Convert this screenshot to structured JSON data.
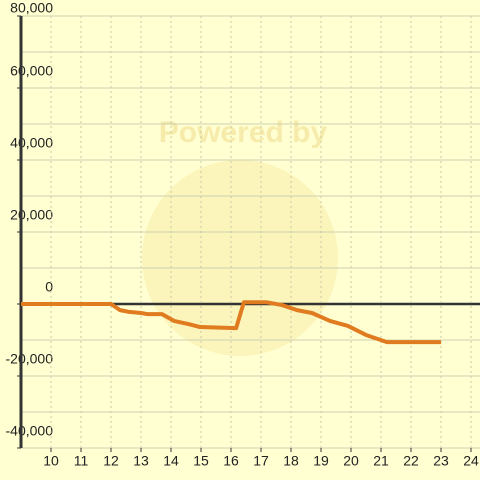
{
  "chart_data": {
    "type": "line",
    "watermark": "Powered by",
    "x": [
      9,
      12,
      12.3,
      12.6,
      13,
      13.2,
      13.7,
      14.1,
      14.6,
      14.97,
      16.17,
      16.43,
      17.17,
      17.7,
      18.2,
      18.7,
      19.3,
      19.9,
      20.5,
      21.2,
      23
    ],
    "series": [
      {
        "color": "#e07b1f",
        "values": [
          0,
          0,
          -1700,
          -2200,
          -2500,
          -2800,
          -2800,
          -4700,
          -5600,
          -6400,
          -6700,
          500,
          500,
          -300,
          -1700,
          -2500,
          -4700,
          -6100,
          -8600,
          -10600,
          -10600
        ]
      }
    ],
    "xlim": [
      9,
      24.3
    ],
    "xticks": [
      10,
      11,
      12,
      13,
      14,
      15,
      16,
      17,
      18,
      19,
      20,
      21,
      22,
      23,
      24
    ],
    "ylim": [
      -40000,
      80000
    ],
    "yticks": [
      {
        "value": -40000,
        "label": "-40,000"
      },
      {
        "value": -20000,
        "label": "-20,000"
      },
      0,
      {
        "value": 20000,
        "label": "20,000"
      },
      {
        "value": 40000,
        "label": "40,000"
      },
      {
        "value": 60000,
        "label": "60,000"
      },
      {
        "value": 80000,
        "label": "80,000"
      }
    ],
    "y_minor_ticks": [
      -30000,
      -10000,
      10000,
      30000,
      50000,
      70000
    ],
    "grid": true
  }
}
